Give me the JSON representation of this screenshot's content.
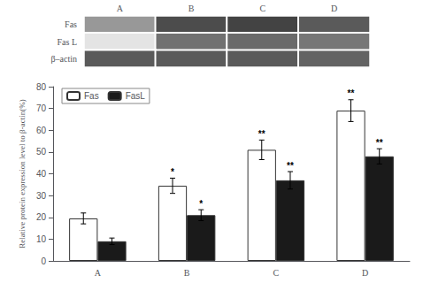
{
  "chart_data": [
    {
      "type": "heatmap",
      "categories": [
        "A",
        "B",
        "C",
        "D"
      ],
      "series": [
        {
          "name": "Fas",
          "values": [
            0.45,
            0.78,
            0.82,
            0.72
          ]
        },
        {
          "name": "Fas L",
          "values": [
            0.12,
            0.62,
            0.65,
            0.6
          ]
        },
        {
          "name": "β–actin",
          "values": [
            0.72,
            0.72,
            0.72,
            0.68
          ]
        }
      ],
      "zlim": [
        0,
        1
      ]
    },
    {
      "type": "bar",
      "categories": [
        "A",
        "B",
        "C",
        "D"
      ],
      "ylabel": "Relative protein expression level to β-actin(%)",
      "ylim": [
        0,
        80
      ],
      "yticks": [
        0,
        10,
        20,
        30,
        40,
        50,
        60,
        70,
        80
      ],
      "grid": false,
      "legend": "upper left",
      "series": [
        {
          "name": "Fas",
          "color": "#ffffff",
          "edge_color": "#333333",
          "values": [
            19.5,
            34.5,
            51.0,
            69.0
          ],
          "errors": [
            2.5,
            3.5,
            4.5,
            5.0
          ],
          "annotations": [
            null,
            "*",
            "**",
            "**"
          ]
        },
        {
          "name": "FasL",
          "color": "#1a1a1a",
          "edge_color": "#333333",
          "values": [
            9.0,
            21.0,
            37.0,
            48.0
          ],
          "errors": [
            1.5,
            2.5,
            4.0,
            3.5
          ],
          "annotations": [
            null,
            "*",
            "**",
            "**"
          ]
        }
      ]
    }
  ]
}
